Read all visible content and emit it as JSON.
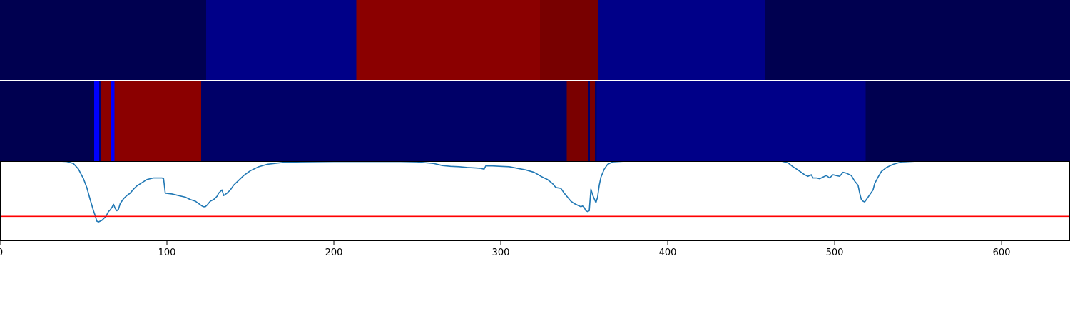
{
  "chart_data": [
    {
      "type": "heatmap",
      "xlim": [
        0,
        641
      ],
      "segments": [
        {
          "start": 0,
          "end": 123.5,
          "color": "#000050"
        },
        {
          "start": 123.5,
          "end": 213.5,
          "color": "#000088"
        },
        {
          "start": 213.5,
          "end": 323.5,
          "color": "#8b0000"
        },
        {
          "start": 323.5,
          "end": 358,
          "color": "#780000"
        },
        {
          "start": 358,
          "end": 458,
          "color": "#000088"
        },
        {
          "start": 458,
          "end": 641,
          "color": "#000050"
        }
      ]
    },
    {
      "type": "heatmap",
      "xlim": [
        0,
        641
      ],
      "segments": [
        {
          "start": 0,
          "end": 56.5,
          "color": "#000050"
        },
        {
          "start": 56.5,
          "end": 59.5,
          "color": "#0000ff"
        },
        {
          "start": 59.5,
          "end": 60.5,
          "color": "#000070"
        },
        {
          "start": 60.5,
          "end": 66.5,
          "color": "#8b0000"
        },
        {
          "start": 66.5,
          "end": 68.5,
          "color": "#0000ff"
        },
        {
          "start": 68.5,
          "end": 120.5,
          "color": "#8b0000"
        },
        {
          "start": 120.5,
          "end": 339.5,
          "color": "#000068"
        },
        {
          "start": 339.5,
          "end": 352.5,
          "color": "#7a0000"
        },
        {
          "start": 352.5,
          "end": 353.5,
          "color": "#000068"
        },
        {
          "start": 353.5,
          "end": 356.5,
          "color": "#7a0000"
        },
        {
          "start": 356.5,
          "end": 357.5,
          "color": "#000068"
        },
        {
          "start": 357.5,
          "end": 518.5,
          "color": "#000088"
        },
        {
          "start": 518.5,
          "end": 641,
          "color": "#000050"
        }
      ]
    },
    {
      "type": "line",
      "xlim": [
        0,
        641
      ],
      "ylim": [
        0,
        1
      ],
      "xticks": [
        0,
        100,
        200,
        300,
        400,
        500,
        600
      ],
      "series": [
        {
          "color": "#1f77b4",
          "points": [
            [
              35,
              1.0
            ],
            [
              40,
              0.995
            ],
            [
              44,
              0.97
            ],
            [
              47,
              0.9
            ],
            [
              50,
              0.78
            ],
            [
              52,
              0.67
            ],
            [
              54,
              0.52
            ],
            [
              55,
              0.45
            ],
            [
              56,
              0.38
            ],
            [
              57,
              0.32
            ],
            [
              58,
              0.25
            ],
            [
              59,
              0.24
            ],
            [
              61,
              0.26
            ],
            [
              63,
              0.3
            ],
            [
              64,
              0.33
            ],
            [
              65,
              0.37
            ],
            [
              66,
              0.39
            ],
            [
              67,
              0.42
            ],
            [
              68,
              0.46
            ],
            [
              69,
              0.41
            ],
            [
              70,
              0.38
            ],
            [
              71,
              0.4
            ],
            [
              72,
              0.47
            ],
            [
              74,
              0.53
            ],
            [
              76,
              0.57
            ],
            [
              78,
              0.6
            ],
            [
              80,
              0.65
            ],
            [
              82,
              0.69
            ],
            [
              85,
              0.73
            ],
            [
              88,
              0.77
            ],
            [
              92,
              0.79
            ],
            [
              97,
              0.79
            ],
            [
              98,
              0.78
            ],
            [
              99,
              0.6
            ],
            [
              103,
              0.59
            ],
            [
              107,
              0.57
            ],
            [
              111,
              0.55
            ],
            [
              114,
              0.52
            ],
            [
              117,
              0.5
            ],
            [
              119,
              0.47
            ],
            [
              121,
              0.44
            ],
            [
              122,
              0.43
            ],
            [
              123,
              0.43
            ],
            [
              124,
              0.45
            ],
            [
              126,
              0.5
            ],
            [
              128,
              0.52
            ],
            [
              130,
              0.56
            ],
            [
              131,
              0.6
            ],
            [
              132,
              0.62
            ],
            [
              133,
              0.64
            ],
            [
              134,
              0.57
            ],
            [
              136,
              0.6
            ],
            [
              138,
              0.64
            ],
            [
              140,
              0.7
            ],
            [
              143,
              0.76
            ],
            [
              146,
              0.82
            ],
            [
              150,
              0.88
            ],
            [
              155,
              0.93
            ],
            [
              160,
              0.96
            ],
            [
              170,
              0.985
            ],
            [
              180,
              0.99
            ],
            [
              200,
              0.995
            ],
            [
              220,
              0.995
            ],
            [
              240,
              0.995
            ],
            [
              250,
              0.99
            ],
            [
              255,
              0.98
            ],
            [
              260,
              0.97
            ],
            [
              265,
              0.945
            ],
            [
              270,
              0.935
            ],
            [
              275,
              0.93
            ],
            [
              280,
              0.92
            ],
            [
              285,
              0.915
            ],
            [
              288,
              0.91
            ],
            [
              290,
              0.9
            ],
            [
              291,
              0.94
            ],
            [
              295,
              0.94
            ],
            [
              300,
              0.935
            ],
            [
              305,
              0.93
            ],
            [
              310,
              0.91
            ],
            [
              315,
              0.89
            ],
            [
              320,
              0.86
            ],
            [
              325,
              0.8
            ],
            [
              328,
              0.77
            ],
            [
              331,
              0.72
            ],
            [
              333,
              0.67
            ],
            [
              336,
              0.66
            ],
            [
              338,
              0.6
            ],
            [
              340,
              0.55
            ],
            [
              342,
              0.5
            ],
            [
              344,
              0.47
            ],
            [
              346,
              0.45
            ],
            [
              348,
              0.43
            ],
            [
              349,
              0.44
            ],
            [
              350,
              0.42
            ],
            [
              351,
              0.38
            ],
            [
              352,
              0.37
            ],
            [
              353,
              0.38
            ],
            [
              354,
              0.65
            ],
            [
              355,
              0.58
            ],
            [
              357,
              0.48
            ],
            [
              358,
              0.55
            ],
            [
              359,
              0.7
            ],
            [
              360,
              0.8
            ],
            [
              362,
              0.9
            ],
            [
              364,
              0.96
            ],
            [
              367,
              0.99
            ],
            [
              375,
              1.0
            ],
            [
              400,
              1.0
            ],
            [
              440,
              0.998
            ],
            [
              468,
              1.0
            ],
            [
              472,
              0.98
            ],
            [
              475,
              0.93
            ],
            [
              478,
              0.89
            ],
            [
              480,
              0.86
            ],
            [
              482,
              0.83
            ],
            [
              484,
              0.81
            ],
            [
              486,
              0.83
            ],
            [
              487,
              0.79
            ],
            [
              489,
              0.79
            ],
            [
              491,
              0.78
            ],
            [
              493,
              0.8
            ],
            [
              495,
              0.82
            ],
            [
              497,
              0.79
            ],
            [
              499,
              0.83
            ],
            [
              501,
              0.82
            ],
            [
              503,
              0.81
            ],
            [
              505,
              0.86
            ],
            [
              507,
              0.85
            ],
            [
              510,
              0.82
            ],
            [
              512,
              0.75
            ],
            [
              514,
              0.7
            ],
            [
              515,
              0.6
            ],
            [
              516,
              0.52
            ],
            [
              517,
              0.5
            ],
            [
              518,
              0.49
            ],
            [
              519,
              0.52
            ],
            [
              521,
              0.58
            ],
            [
              523,
              0.64
            ],
            [
              524,
              0.72
            ],
            [
              526,
              0.8
            ],
            [
              528,
              0.87
            ],
            [
              531,
              0.92
            ],
            [
              535,
              0.96
            ],
            [
              540,
              0.99
            ],
            [
              550,
              1.0
            ],
            [
              580,
              1.0
            ]
          ]
        }
      ],
      "threshold": {
        "y": 0.31,
        "color": "#ff0000"
      }
    }
  ]
}
